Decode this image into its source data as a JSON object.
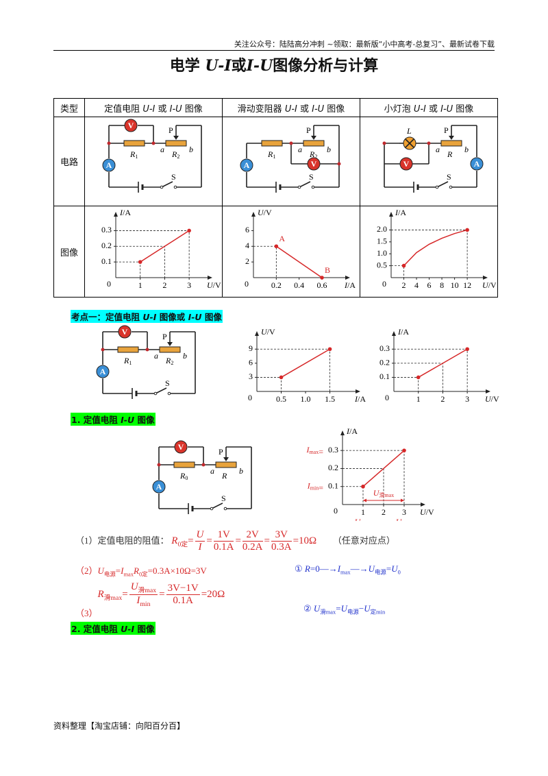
{
  "header": {
    "notice": "关注公众号：陆陆高分冲刺  ~领取：最新版“小中高考-总复习”、最新试卷下载"
  },
  "title": [
    "电学 ",
    {
      "i": "U-I"
    },
    "或",
    {
      "i": "I-U"
    },
    "图像分析与计算"
  ],
  "table": {
    "header": [
      [
        "类型"
      ],
      [
        "定值电阻 ",
        {
          "i": "U-I"
        },
        " 或 ",
        {
          "i": "I-U"
        },
        " 图像"
      ],
      [
        "滑动变阻器 ",
        {
          "i": "U-I"
        },
        " 或 ",
        {
          "i": "I-U"
        },
        " 图像"
      ],
      [
        "小灯泡 ",
        {
          "i": "U-I"
        },
        " 或 ",
        {
          "i": "I-U"
        },
        " 图像"
      ]
    ],
    "row_labels": [
      "电路",
      "图像"
    ],
    "circuits": [
      {
        "kind": "fixed",
        "voltmeter": "V",
        "ammeter": "A",
        "slider": "P",
        "switch": "S",
        "fixed": [
          {
            "i": "R"
          },
          {
            "sub": "1"
          }
        ],
        "variable": [
          {
            "i": "R"
          },
          {
            "sub": "2"
          }
        ],
        "end_a": "a",
        "end_b": "b"
      },
      {
        "kind": "rheo",
        "voltmeter": "V",
        "ammeter": "A",
        "slider": "P",
        "switch": "S",
        "fixed": [
          {
            "i": "R"
          },
          {
            "sub": "1"
          }
        ],
        "variable": [
          {
            "i": "R"
          },
          {
            "sub": "2"
          }
        ],
        "end_a": "a",
        "end_b": "b"
      },
      {
        "kind": "lamp",
        "voltmeter": "V",
        "ammeter": "A",
        "slider": "P",
        "switch": "S",
        "lamp": [
          {
            "i": "L"
          }
        ],
        "variable": [
          {
            "i": "R"
          }
        ],
        "end_a": "a",
        "end_b": "b"
      }
    ],
    "graphs": [
      {
        "line": "straight",
        "color": "#d62728",
        "x_label": [
          {
            "i": "U"
          },
          "/V"
        ],
        "y_label": [
          {
            "i": "I"
          },
          "/A"
        ],
        "origin": "0",
        "xlim": [
          0,
          3.5
        ],
        "ylim": [
          0,
          0.35
        ],
        "xticks": [
          1,
          2,
          3
        ],
        "yticks": [
          0.1,
          0.2,
          0.3
        ],
        "x": [
          1,
          2,
          3
        ],
        "y": [
          0.1,
          0.2,
          0.3
        ]
      },
      {
        "line": "straight",
        "color": "#d62728",
        "x_label": [
          {
            "i": "I"
          },
          "/A"
        ],
        "y_label": [
          {
            "i": "U"
          },
          "/V"
        ],
        "origin": "0",
        "xlim": [
          0,
          0.75
        ],
        "ylim": [
          0,
          7
        ],
        "xticks": [
          0.2,
          0.4,
          0.6
        ],
        "yticks": [
          2,
          4,
          6
        ],
        "x": [
          0.2,
          0.6
        ],
        "y": [
          4,
          0
        ],
        "point_labels": [
          "A",
          "B"
        ]
      },
      {
        "line": "curve",
        "color": "#d62728",
        "x_label": [
          {
            "i": "U"
          },
          "/V"
        ],
        "y_label": [
          {
            "i": "I"
          },
          "/A"
        ],
        "origin": "0",
        "xlim": [
          0,
          13.5
        ],
        "ylim": [
          0,
          2.3
        ],
        "xticks": [
          2,
          4,
          6,
          8,
          10,
          12
        ],
        "yticks": [
          0.5,
          {
            "value": 1,
            "label": "1.0"
          },
          1.5,
          {
            "value": 2,
            "label": "2.0"
          }
        ],
        "x": [
          2,
          4,
          6,
          8,
          10,
          12
        ],
        "y": [
          0.5,
          1.05,
          1.4,
          1.65,
          1.85,
          2
        ]
      }
    ]
  },
  "section1": {
    "heading": [
      "考点一：定值电阻 ",
      {
        "i": "U-I"
      },
      " 图像或 ",
      {
        "i": "I-U"
      },
      " 图像"
    ],
    "circuit": {
      "kind": "fixed",
      "voltmeter": "V",
      "ammeter": "A",
      "slider": "P",
      "switch": "S",
      "fixed": [
        {
          "i": "R"
        },
        {
          "sub": "1"
        }
      ],
      "variable": [
        {
          "i": "R"
        },
        {
          "sub": "2"
        }
      ],
      "end_a": "a",
      "end_b": "b"
    },
    "graphs": [
      {
        "line": "straight",
        "color": "#d62728",
        "x_label": [
          {
            "i": "I"
          },
          "/A"
        ],
        "y_label": [
          {
            "i": "U"
          },
          "/V"
        ],
        "origin": "0",
        "xlim": [
          0,
          1.9
        ],
        "ylim": [
          0,
          10.5
        ],
        "xticks": [
          0.5,
          {
            "value": 1,
            "label": "1.0"
          },
          1.5
        ],
        "yticks": [
          3,
          6,
          9
        ],
        "x": [
          0.5,
          1.5
        ],
        "y": [
          3,
          9
        ]
      },
      {
        "line": "straight",
        "color": "#d62728",
        "x_label": [
          {
            "i": "U"
          },
          "/V"
        ],
        "y_label": [
          {
            "i": "I"
          },
          "/A"
        ],
        "origin": "0",
        "xlim": [
          0,
          3.5
        ],
        "ylim": [
          0,
          0.35
        ],
        "xticks": [
          1,
          2,
          3
        ],
        "yticks": [
          0.1,
          0.2,
          0.3
        ],
        "x": [
          1,
          2,
          3
        ],
        "y": [
          0.1,
          0.2,
          0.3
        ]
      }
    ]
  },
  "subsection1": {
    "heading": [
      "1. 定值电阻 ",
      {
        "i": "I-U"
      },
      " 图像"
    ],
    "circuit": {
      "kind": "fixed",
      "voltmeter": "V",
      "ammeter": "A",
      "slider": "P",
      "switch": "S",
      "fixed": [
        {
          "i": "R"
        },
        {
          "sub": "0"
        }
      ],
      "variable": [
        {
          "i": "R"
        }
      ],
      "end_a": "a",
      "end_b": "b"
    },
    "graph": {
      "line": "straight",
      "color": "#d62728",
      "x_label": [
        {
          "i": "U"
        },
        "/V"
      ],
      "y_label": [
        {
          "i": "I"
        },
        "/A"
      ],
      "origin": "0",
      "xlim": [
        0,
        3.5
      ],
      "ylim": [
        0,
        0.35
      ],
      "xticks": [
        1,
        2,
        3
      ],
      "yticks": [
        0.1,
        0.2,
        0.3
      ],
      "x": [
        1,
        2,
        3
      ],
      "y": [
        0.1,
        0.2,
        0.3
      ],
      "ymax_note": [
        {
          "i": "I"
        },
        {
          "sub": "max"
        },
        "="
      ],
      "ymin_note": [
        {
          "i": "I"
        },
        {
          "sub": "min"
        },
        "="
      ],
      "span_note": [
        {
          "i": "U"
        },
        {
          "sub": "滑max"
        }
      ],
      "x_notes": [
        [
          {
            "i": "U"
          },
          {
            "sub": "0min"
          }
        ],
        [
          {
            "i": "U"
          },
          {
            "sub": "电源"
          }
        ]
      ]
    },
    "formulas": [
      {
        "label": "（1）定值电阻的阻值：",
        "expr": [
          {
            "i": "R"
          },
          {
            "sub": "0定"
          },
          "=",
          {
            "frac": [
              [
                {
                  "i": "U"
                }
              ],
              [
                {
                  "i": "I"
                }
              ]
            ]
          },
          "=",
          {
            "frac": [
              [
                "1V"
              ],
              [
                "0.1A"
              ]
            ]
          },
          "=",
          {
            "frac": [
              [
                "2V"
              ],
              [
                "0.2A"
              ]
            ]
          },
          "=",
          {
            "frac": [
              [
                "3V"
              ],
              [
                "0.3A"
              ]
            ]
          },
          "=10Ω"
        ],
        "note": "（任意对应点）"
      },
      {
        "label": "（2）",
        "expr": [
          {
            "i": "U"
          },
          {
            "sub": "电源"
          },
          "=",
          {
            "i": "I"
          },
          {
            "sub": "max"
          },
          {
            "i": "R"
          },
          {
            "sub": "0定"
          },
          "=0.3A×10Ω=3V"
        ]
      },
      {
        "label": "（3）",
        "expr": [
          {
            "i": "R"
          },
          {
            "sub": "滑max"
          },
          "=",
          {
            "frac": [
              [
                {
                  "i": "U"
                },
                {
                  "sub": "滑max"
                }
              ],
              [
                {
                  "i": "I"
                },
                {
                  "sub": "min"
                }
              ]
            ]
          },
          "=",
          {
            "frac": [
              [
                "3V−1V"
              ],
              [
                "0.1A"
              ]
            ]
          },
          "=20Ω"
        ]
      }
    ],
    "notes": [
      [
        "① ",
        {
          "i": "R"
        },
        "=0—→",
        {
          "i": "I"
        },
        {
          "sub": "max"
        },
        "—→",
        {
          "i": "U"
        },
        {
          "sub": "电源"
        },
        "=",
        {
          "i": "U"
        },
        {
          "sub": "0"
        }
      ],
      [
        "② ",
        {
          "i": "U"
        },
        {
          "sub": "滑max"
        },
        "=",
        {
          "i": "U"
        },
        {
          "sub": "电源"
        },
        "−",
        {
          "i": "U"
        },
        {
          "sub": "定min"
        }
      ]
    ]
  },
  "subsection2": {
    "heading": [
      "2. 定值电阻 ",
      {
        "i": "U-I"
      },
      " 图像"
    ]
  },
  "footer": "资料整理【淘宝店铺：向阳百分百】"
}
